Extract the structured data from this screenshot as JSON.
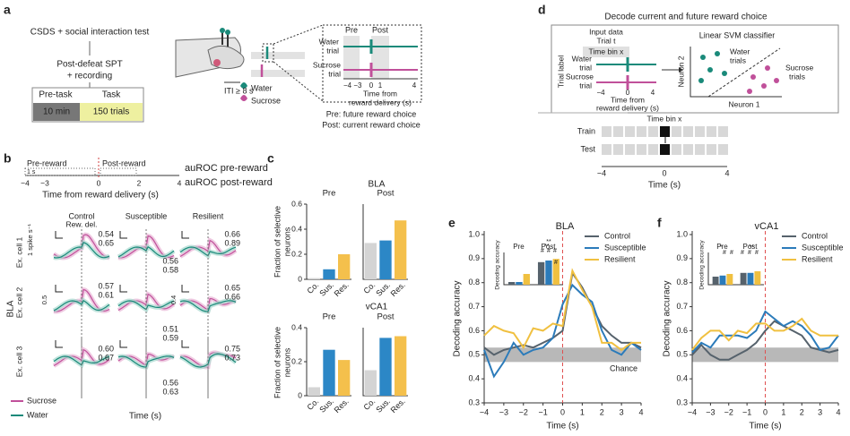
{
  "panel_a": {
    "label": "a",
    "step1": "CSDS + social interaction test",
    "step2": "Post-defeat SPT",
    "step3": "+ recording",
    "pre_task": "Pre-task",
    "task": "Task",
    "pre_duration": "10 min",
    "task_trials": "150 trials",
    "water": "Water",
    "sucrose": "Sucrose",
    "iti": "ITI ≥ 8 s",
    "pre": "Pre",
    "post": "Post",
    "water_trial": [
      "Water",
      "trial"
    ],
    "sucrose_trial": [
      "Sucrose",
      "trial"
    ],
    "ticks": [
      "−4 −3",
      "0",
      "1",
      "4"
    ],
    "axis_label": [
      "Time from",
      "reward delivery (s)"
    ],
    "note_pre": "Pre: future reward choice",
    "note_post": "Post: current reward choice"
  },
  "panel_b": {
    "label": "b",
    "pre_reward": "Pre-reward",
    "post_reward": "Post-reward",
    "scale": "1 s",
    "ticks": [
      "−4",
      "−3",
      "0",
      "2",
      "4"
    ],
    "axis_label": "Time from reward delivery (s)",
    "auroc_pre": "auROC pre-reward",
    "auroc_post": "auROC post-reward",
    "columns": [
      "Control",
      "Susceptible",
      "Resilient"
    ],
    "rew_del": "Rew. del.",
    "region": "BLA",
    "rows": [
      {
        "label": "Ex. cell 1",
        "scale": "1 spike s⁻¹",
        "auroc": [
          [
            "0.54",
            "0.65"
          ],
          [
            "0.56",
            "0.58"
          ],
          [
            "0.66",
            "0.89"
          ]
        ]
      },
      {
        "label": "Ex. cell 2",
        "scale": "0.5",
        "scale2": "0.4",
        "auroc": [
          [
            "0.57",
            "0.61"
          ],
          [
            "0.51",
            "0.59"
          ],
          [
            "0.65",
            "0.66"
          ]
        ]
      },
      {
        "label": "Ex. cell 3",
        "auroc": [
          [
            "0.60",
            "0.67"
          ],
          [
            "0.56",
            "0.63"
          ],
          [
            "0.75",
            "0.73"
          ]
        ]
      }
    ],
    "legend": [
      "Sucrose",
      "Water"
    ],
    "xlabel": "Time (s)"
  },
  "panel_c": {
    "label": "c",
    "regions": [
      "BLA",
      "vCA1"
    ],
    "ylabel": [
      "Fraction of selective",
      "neurons"
    ]
  },
  "panel_d": {
    "label": "d",
    "title": "Decode current and future reward choice",
    "input": [
      "Input data",
      "Trial t",
      "Time bin x"
    ],
    "trial_label": "Trial label",
    "water_trial": [
      "Water",
      "trial"
    ],
    "sucrose_trial": [
      "Sucrose",
      "trial"
    ],
    "ticks": [
      "−4",
      "0",
      "4"
    ],
    "axis_label": [
      "Time from",
      "reward delivery (s)"
    ],
    "classifier": "Linear SVM classifier",
    "water_trials": [
      "Water",
      "trials"
    ],
    "sucrose_trials": [
      "Sucrose",
      "trials"
    ],
    "neuron2": "Neuron 2",
    "neuron1": "Neuron 1",
    "time_bin": "Time bin x",
    "train": "Train",
    "test": "Test",
    "time_ticks": [
      "−4",
      "0",
      "4"
    ],
    "xlabel": "Time (s)"
  },
  "panel_e": {
    "label": "e"
  },
  "panel_f": {
    "label": "f"
  },
  "chart_data": [
    {
      "type": "bar",
      "title": "Pre",
      "categories": [
        "Co.",
        "Sus.",
        "Res."
      ],
      "values": [
        0.01,
        0.08,
        0.2
      ],
      "colors": [
        "#d4d4d4",
        "#2c87c6",
        "#f4c04c"
      ],
      "ylim": [
        0,
        0.6
      ],
      "yticks": [
        0,
        0.2,
        0.4,
        0.6
      ]
    },
    {
      "type": "bar",
      "title": "Post",
      "categories": [
        "Co.",
        "Sus.",
        "Res."
      ],
      "values": [
        0.29,
        0.31,
        0.47
      ],
      "colors": [
        "#d4d4d4",
        "#2c87c6",
        "#f4c04c"
      ],
      "ylim": [
        0,
        0.6
      ]
    },
    {
      "type": "bar",
      "title": "Pre",
      "categories": [
        "Co.",
        "Sus.",
        "Res."
      ],
      "values": [
        0.05,
        0.27,
        0.21
      ],
      "colors": [
        "#d4d4d4",
        "#2c87c6",
        "#f4c04c"
      ],
      "ylim": [
        0,
        0.4
      ],
      "yticks": [
        0,
        0.2,
        0.4
      ]
    },
    {
      "type": "bar",
      "title": "Post",
      "categories": [
        "Co.",
        "Sus.",
        "Res."
      ],
      "values": [
        0.15,
        0.34,
        0.35
      ],
      "colors": [
        "#d4d4d4",
        "#2c87c6",
        "#f4c04c"
      ],
      "ylim": [
        0,
        0.4
      ]
    },
    {
      "type": "line",
      "title": "BLA",
      "x": [
        -4,
        -3.5,
        -3,
        -2.5,
        -2,
        -1.5,
        -1,
        -0.5,
        0,
        0.5,
        1,
        1.5,
        2,
        2.5,
        3,
        3.5,
        4
      ],
      "series": [
        {
          "name": "Control",
          "color": "#56626c",
          "values": [
            0.53,
            0.5,
            0.52,
            0.53,
            0.54,
            0.53,
            0.55,
            0.57,
            0.6,
            0.84,
            0.78,
            0.7,
            0.62,
            0.58,
            0.55,
            0.55,
            0.53
          ]
        },
        {
          "name": "Susceptible",
          "color": "#2b7bba",
          "values": [
            0.52,
            0.41,
            0.47,
            0.55,
            0.5,
            0.52,
            0.53,
            0.57,
            0.71,
            0.79,
            0.75,
            0.72,
            0.6,
            0.52,
            0.5,
            0.55,
            0.52
          ]
        },
        {
          "name": "Resilient",
          "color": "#f0c040",
          "values": [
            0.58,
            0.62,
            0.6,
            0.59,
            0.53,
            0.61,
            0.6,
            0.63,
            0.62,
            0.85,
            0.77,
            0.7,
            0.55,
            0.55,
            0.52,
            0.55,
            0.55
          ]
        }
      ],
      "xlim": [
        -4,
        4
      ],
      "xticks": [
        {
          "value": -4,
          "label": "−4"
        },
        {
          "value": -3,
          "label": "−3"
        },
        {
          "value": -2,
          "label": "−2"
        },
        {
          "value": -1,
          "label": "−1"
        },
        0,
        1,
        2,
        3,
        4
      ],
      "ylim": [
        0.3,
        1.0
      ],
      "yticks": [
        0.3,
        0.4,
        0.5,
        0.6,
        0.7,
        0.8,
        0.9,
        {
          "value": 1,
          "label": "1.0"
        }
      ],
      "chance_band": [
        0.47,
        0.53
      ],
      "chance_label": "Chance",
      "event_x": 0,
      "xlabel": "Time (s)",
      "ylabel": "Decoding accuracy",
      "legend": "upper right"
    },
    {
      "type": "bar",
      "ylabel": "Decoding accuracy",
      "categories": [
        "Pre",
        "Post"
      ],
      "series": [
        {
          "color": "#56626c",
          "values": [
            0.45,
            0.82
          ]
        },
        {
          "color": "#2b7bba",
          "values": [
            0.45,
            0.85
          ]
        },
        {
          "color": "#f0c040",
          "values": [
            0.6,
            0.88
          ]
        }
      ],
      "ylim": [
        0.4,
        1.0
      ],
      "annotations": [
        "#",
        "#",
        "#",
        "#",
        "**",
        "**"
      ]
    },
    {
      "type": "line",
      "title": "vCA1",
      "x": [
        -4,
        -3.5,
        -3,
        -2.5,
        -2,
        -1.5,
        -1,
        -0.5,
        0,
        0.5,
        1,
        1.5,
        2,
        2.5,
        3,
        3.5,
        4
      ],
      "series": [
        {
          "name": "Control",
          "color": "#56626c",
          "values": [
            0.5,
            0.54,
            0.5,
            0.48,
            0.48,
            0.5,
            0.52,
            0.55,
            0.6,
            0.64,
            0.62,
            0.6,
            0.58,
            0.53,
            0.52,
            0.51,
            0.52
          ]
        },
        {
          "name": "Susceptible",
          "color": "#2b7bba",
          "values": [
            0.51,
            0.55,
            0.53,
            0.58,
            0.58,
            0.58,
            0.57,
            0.6,
            0.68,
            0.65,
            0.62,
            0.64,
            0.62,
            0.58,
            0.52,
            0.53,
            0.58
          ]
        },
        {
          "name": "Resilient",
          "color": "#f0c040",
          "values": [
            0.52,
            0.57,
            0.6,
            0.6,
            0.56,
            0.6,
            0.59,
            0.63,
            0.63,
            0.6,
            0.6,
            0.62,
            0.65,
            0.6,
            0.58,
            0.58,
            0.58
          ]
        }
      ],
      "xlim": [
        -4,
        4
      ],
      "xticks": [
        {
          "value": -4,
          "label": "−4"
        },
        {
          "value": -3,
          "label": "−3"
        },
        {
          "value": -2,
          "label": "−2"
        },
        {
          "value": -1,
          "label": "−1"
        },
        0,
        1,
        2,
        3,
        4
      ],
      "ylim": [
        0.3,
        1.0
      ],
      "yticks": [
        0.3,
        0.4,
        0.5,
        0.6,
        0.7,
        0.8,
        0.9,
        {
          "value": 1,
          "label": "1.0"
        }
      ],
      "chance_band": [
        0.47,
        0.53
      ],
      "event_x": 0,
      "xlabel": "Time (s)",
      "ylabel": "Decoding accuracy",
      "legend": "upper right"
    },
    {
      "type": "bar",
      "ylabel": "Decoding accuracy",
      "categories": [
        "Pre",
        "Post"
      ],
      "series": [
        {
          "color": "#56626c",
          "values": [
            0.55,
            0.62
          ]
        },
        {
          "color": "#2b7bba",
          "values": [
            0.57,
            0.62
          ]
        },
        {
          "color": "#f0c040",
          "values": [
            0.6,
            0.65
          ]
        }
      ],
      "ylim": [
        0.4,
        1.0
      ],
      "annotations": [
        "*",
        "#",
        "#",
        "**",
        "#",
        "#",
        "#"
      ]
    }
  ]
}
